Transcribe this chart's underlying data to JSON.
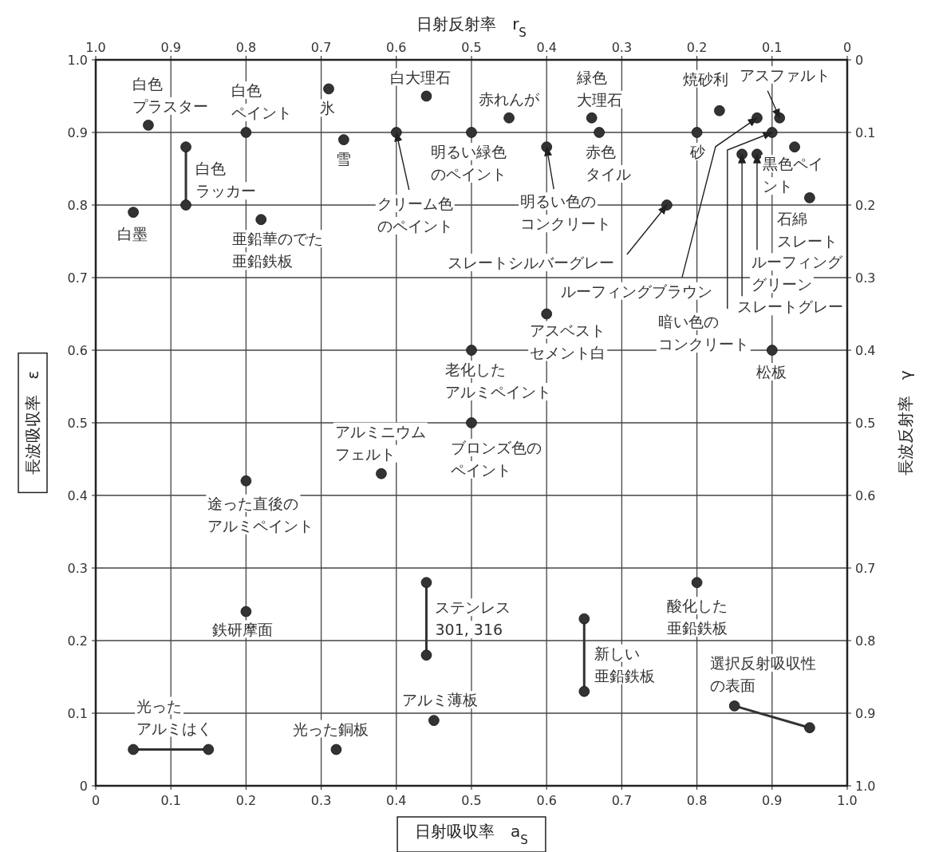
{
  "chart_data": {
    "type": "scatter",
    "xlabel": "日射吸収率　a$_{S}$",
    "x2label": "日射反射率　r$_{S}$",
    "ylabel": "長波吸収率　ε",
    "y2label": "長波反射率　γ",
    "xlim": [
      0,
      1
    ],
    "xticks": [
      0,
      0.1,
      0.2,
      0.3,
      0.4,
      0.5,
      0.6,
      0.7,
      0.8,
      0.9,
      {
        "value": 1,
        "label": "1.0"
      }
    ],
    "x2lim": [
      1,
      0
    ],
    "x2ticks": [
      {
        "value": 1,
        "label": "1.0"
      },
      0.9,
      0.8,
      0.7,
      0.6,
      0.5,
      0.4,
      0.3,
      0.2,
      0.1,
      0
    ],
    "ylim": [
      0,
      1
    ],
    "yticks": [
      0,
      0.1,
      0.2,
      0.3,
      0.4,
      0.5,
      0.6,
      0.7,
      0.8,
      0.9,
      {
        "value": 1,
        "label": "1.0"
      }
    ],
    "y2lim": [
      1,
      0
    ],
    "y2ticks": [
      0,
      0.1,
      0.2,
      0.3,
      0.4,
      0.5,
      0.6,
      0.7,
      0.8,
      0.9,
      {
        "value": 1,
        "label": "1.0"
      }
    ],
    "grid": true,
    "marker": "circle",
    "line_style": "solid",
    "series": [
      {
        "color": "#333333",
        "x": [
          0.07,
          0.05,
          0.2,
          0.22,
          0.31,
          0.33,
          0.4,
          0.44,
          0.5,
          0.55,
          0.6,
          0.66,
          0.67,
          0.76,
          0.8,
          0.83,
          0.88,
          0.91,
          0.9,
          0.88,
          0.86,
          0.93,
          0.95,
          0.9,
          0.6,
          0.5,
          0.5,
          0.38,
          0.2,
          0.2,
          0.8,
          0.32,
          0.45
        ],
        "values": [
          0.91,
          0.79,
          0.9,
          0.78,
          0.96,
          0.89,
          0.9,
          0.95,
          0.9,
          0.92,
          0.88,
          0.92,
          0.9,
          0.8,
          0.9,
          0.93,
          0.92,
          0.92,
          0.9,
          0.87,
          0.87,
          0.88,
          0.81,
          0.6,
          0.65,
          0.6,
          0.5,
          0.43,
          0.42,
          0.24,
          0.28,
          0.05,
          0.09
        ]
      },
      {
        "type": "line",
        "color": "#333333",
        "x": [
          0.12,
          0.12
        ],
        "values": [
          0.88,
          0.8
        ]
      },
      {
        "type": "line",
        "color": "#333333",
        "x": [
          0.44,
          0.44
        ],
        "values": [
          0.28,
          0.18
        ]
      },
      {
        "type": "line",
        "color": "#333333",
        "x": [
          0.65,
          0.65
        ],
        "values": [
          0.23,
          0.13
        ]
      },
      {
        "type": "line",
        "color": "#333333",
        "x": [
          0.85,
          0.95
        ],
        "values": [
          0.11,
          0.08
        ]
      },
      {
        "type": "line",
        "color": "#333333",
        "x": [
          0.05,
          0.15
        ],
        "values": [
          0.05,
          0.05
        ]
      }
    ],
    "annotations": [
      {
        "text": "白色プラスター",
        "x": 0.07,
        "y": 0.91
      },
      {
        "text": "白墨",
        "x": 0.05,
        "y": 0.79
      },
      {
        "text": "白色ラッカー",
        "x": 0.12,
        "y": 0.88
      },
      {
        "text": "白色ペイント",
        "x": 0.2,
        "y": 0.9
      },
      {
        "text": "亜鉛華のでた亜鉛鉄板",
        "x": 0.22,
        "y": 0.78
      },
      {
        "text": "氷",
        "x": 0.31,
        "y": 0.96
      },
      {
        "text": "雪",
        "x": 0.33,
        "y": 0.89
      },
      {
        "text": "クリーム色のペイント",
        "x": 0.4,
        "y": 0.9
      },
      {
        "text": "白大理石",
        "x": 0.44,
        "y": 0.95
      },
      {
        "text": "明るい緑色のペイント",
        "x": 0.5,
        "y": 0.9
      },
      {
        "text": "赤れんが",
        "x": 0.55,
        "y": 0.92
      },
      {
        "text": "明るい色のコンクリート",
        "x": 0.6,
        "y": 0.88
      },
      {
        "text": "緑色大理石",
        "x": 0.66,
        "y": 0.92
      },
      {
        "text": "赤色タイル",
        "x": 0.67,
        "y": 0.9
      },
      {
        "text": "スレートシルバーグレー",
        "x": 0.76,
        "y": 0.8
      },
      {
        "text": "砂",
        "x": 0.8,
        "y": 0.9
      },
      {
        "text": "焼砂利",
        "x": 0.83,
        "y": 0.93
      },
      {
        "text": "ルーフィングブラウン",
        "x": 0.88,
        "y": 0.92
      },
      {
        "text": "アスファルト",
        "x": 0.91,
        "y": 0.92
      },
      {
        "text": "暗い色のコンクリート",
        "x": 0.9,
        "y": 0.9
      },
      {
        "text": "ルーフィンググリーン",
        "x": 0.88,
        "y": 0.87
      },
      {
        "text": "スレートグレー",
        "x": 0.86,
        "y": 0.87
      },
      {
        "text": "黒色ペイント",
        "x": 0.93,
        "y": 0.88
      },
      {
        "text": "石綿スレート",
        "x": 0.95,
        "y": 0.81
      },
      {
        "text": "松板",
        "x": 0.9,
        "y": 0.6
      },
      {
        "text": "アスベストセメント白",
        "x": 0.6,
        "y": 0.65
      },
      {
        "text": "老化したアルミペイント",
        "x": 0.5,
        "y": 0.6
      },
      {
        "text": "ブロンズ色のペイント",
        "x": 0.5,
        "y": 0.5
      },
      {
        "text": "アルミニウムフェルト",
        "x": 0.38,
        "y": 0.43
      },
      {
        "text": "途った直後のアルミペイント",
        "x": 0.2,
        "y": 0.42
      },
      {
        "text": "鉄研摩面",
        "x": 0.2,
        "y": 0.24
      },
      {
        "text": "ステンレス301, 316",
        "x": 0.44,
        "y": 0.28
      },
      {
        "text": "新しい亜鉛鉄板",
        "x": 0.65,
        "y": 0.23
      },
      {
        "text": "酸化した亜鉛鉄板",
        "x": 0.8,
        "y": 0.28
      },
      {
        "text": "選択反射吸収性の表面",
        "x": 0.85,
        "y": 0.11
      },
      {
        "text": "光ったアルミはく",
        "x": 0.05,
        "y": 0.05
      },
      {
        "text": "光った銅板",
        "x": 0.32,
        "y": 0.05
      },
      {
        "text": "アルミ薄板",
        "x": 0.45,
        "y": 0.09
      }
    ]
  }
}
